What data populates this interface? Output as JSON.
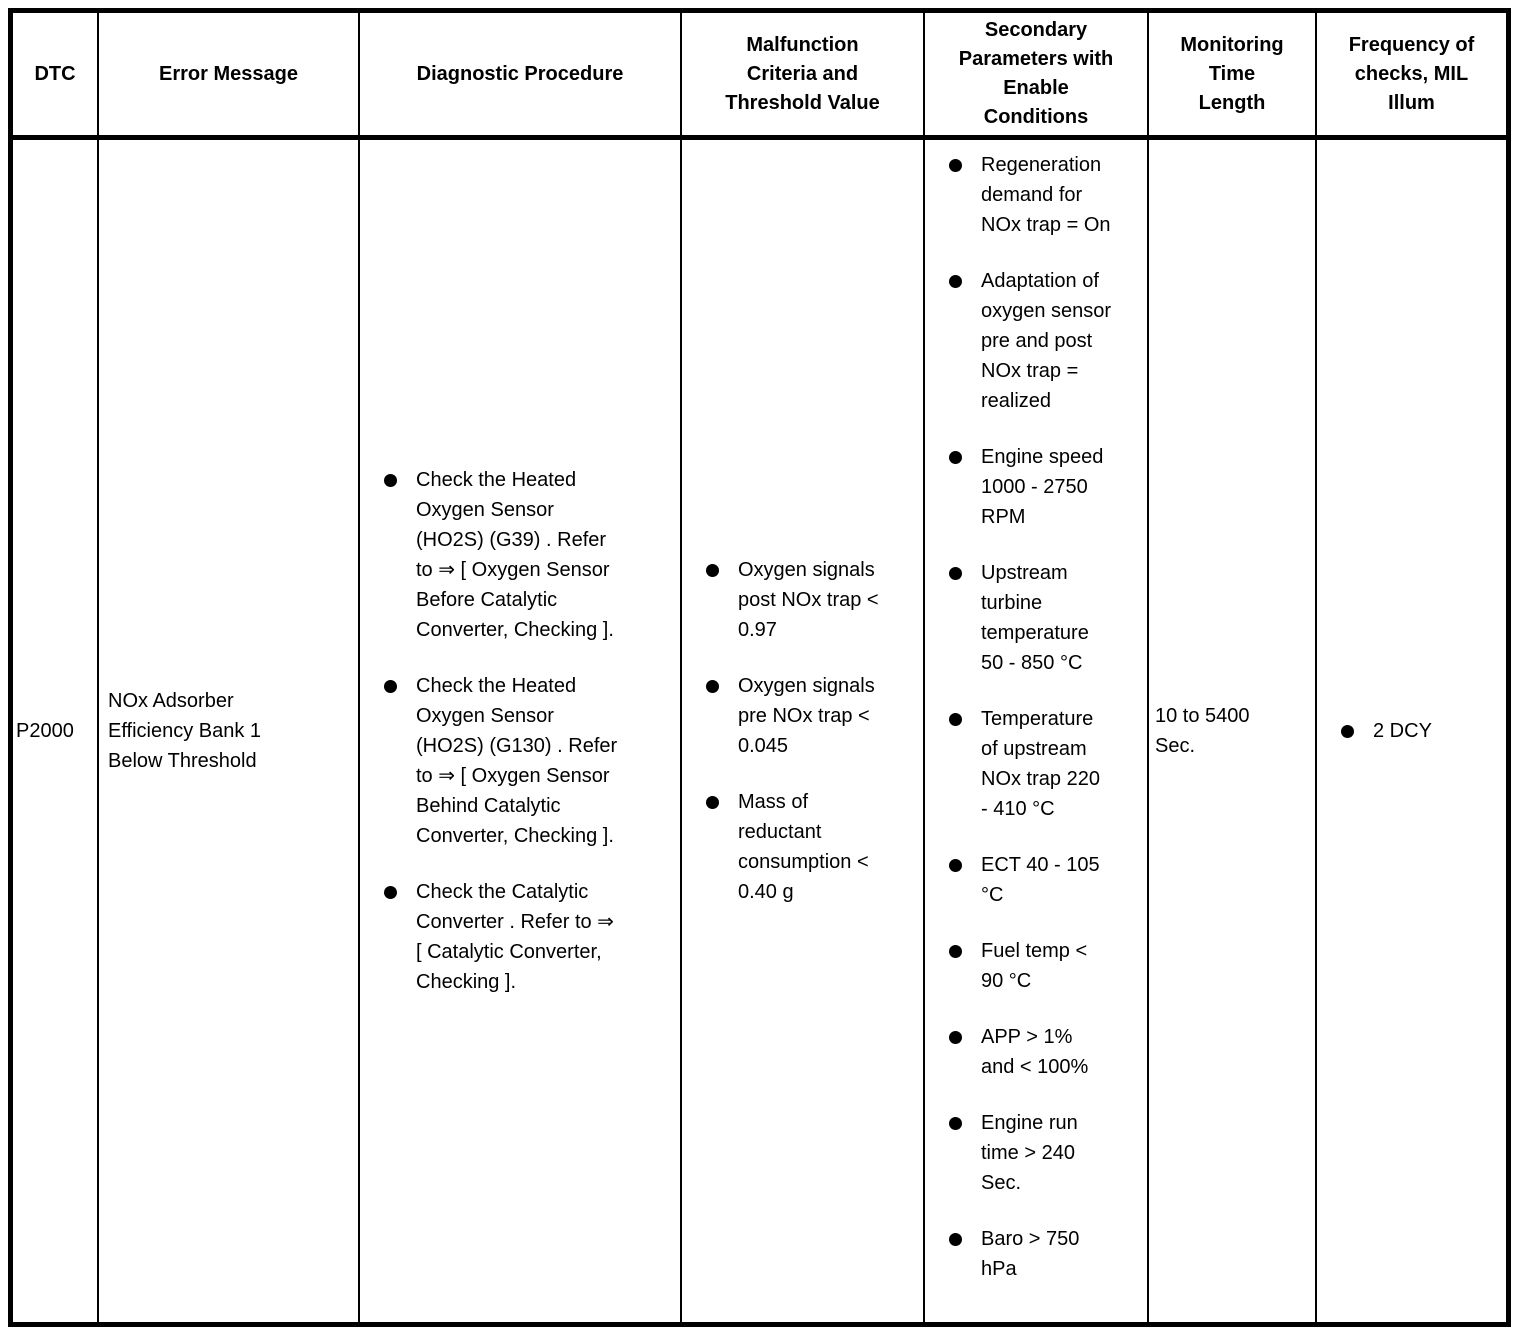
{
  "table": {
    "colors": {
      "border": "#000000",
      "background": "#ffffff",
      "text": "#000000"
    },
    "columns": [
      {
        "label": "DTC"
      },
      {
        "label": "Error Message"
      },
      {
        "label": "Diagnostic Procedure"
      },
      {
        "label": "Malfunction\nCriteria and\nThreshold Value"
      },
      {
        "label": "Secondary\nParameters with\nEnable\nConditions"
      },
      {
        "label": "Monitoring\nTime\nLength"
      },
      {
        "label": "Frequency of\nchecks, MIL\nIllum"
      }
    ],
    "row": {
      "dtc": "P2000",
      "error_message": "NOx Adsorber\nEfficiency Bank 1\nBelow Threshold",
      "diagnostic_procedure": [
        "Check the Heated\nOxygen Sensor\n(HO2S) (G39) . Refer\nto ⇒ [ Oxygen Sensor\nBefore Catalytic\nConverter, Checking ].",
        "Check the Heated\nOxygen Sensor\n(HO2S) (G130) . Refer\nto ⇒ [ Oxygen Sensor\nBehind Catalytic\nConverter, Checking ].",
        "Check the Catalytic\nConverter . Refer to ⇒\n[ Catalytic Converter,\nChecking ]."
      ],
      "malfunction_criteria": [
        "Oxygen signals\npost NOx trap <\n0.97",
        "Oxygen signals\npre NOx trap <\n0.045",
        "Mass of\nreductant\nconsumption <\n0.40 g"
      ],
      "secondary_parameters": [
        "Regeneration\ndemand for\nNOx trap = On",
        "Adaptation of\noxygen sensor\npre and post\nNOx trap =\nrealized",
        "Engine speed\n1000 - 2750\nRPM",
        "Upstream\nturbine\ntemperature\n50 - 850 °C",
        "Temperature\nof upstream\nNOx trap 220\n- 410 °C",
        "ECT 40 - 105\n°C",
        "Fuel temp <\n90 °C",
        "APP > 1%\nand < 100%",
        "Engine run\ntime > 240\nSec.",
        "Baro > 750\nhPa"
      ],
      "monitoring_time": "10 to 5400\nSec.",
      "frequency": [
        "2 DCY"
      ]
    }
  }
}
